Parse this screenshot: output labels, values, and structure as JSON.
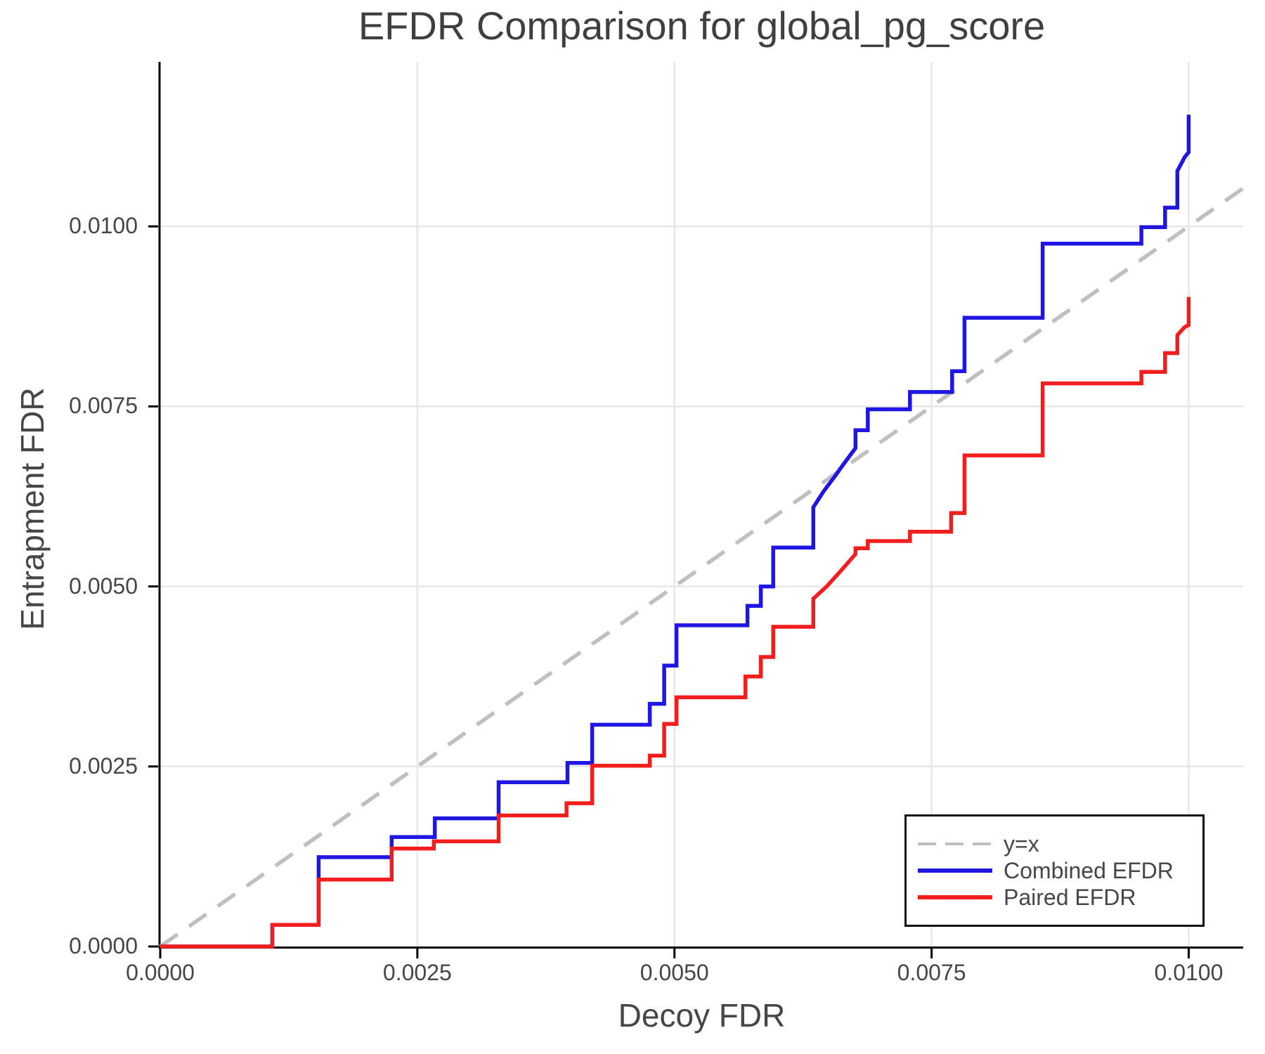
{
  "figure": {
    "title": "EFDR Comparison for global_pg_score",
    "xlabel": "Decoy FDR",
    "ylabel": "Entrapment FDR"
  },
  "colors": {
    "combined": "#2016e2",
    "paired": "#f21d1d",
    "identity": "#bfbfbf",
    "grid": "#e7e7e7",
    "axis": "#000000",
    "text": "#464646"
  },
  "legend": {
    "entries": [
      {
        "label": "y=x",
        "color": "#bfbfbf",
        "style": "dashed"
      },
      {
        "label": "Combined EFDR",
        "color": "#2016e2",
        "style": "solid"
      },
      {
        "label": "Paired EFDR",
        "color": "#f21d1d",
        "style": "solid"
      }
    ]
  },
  "chart_data": {
    "type": "line",
    "title": "EFDR Comparison for global_pg_score",
    "xlabel": "Decoy FDR",
    "ylabel": "Entrapment FDR",
    "xlim": [
      0,
      0.01053
    ],
    "ylim": [
      0,
      0.012285
    ],
    "grid": true,
    "legend_position": "bottom-right",
    "x_tick_labels": [
      "0.0000",
      "0.0025",
      "0.0050",
      "0.0075",
      "0.0100"
    ],
    "x_tick_values": [
      0,
      0.0025,
      0.005,
      0.0075,
      0.01
    ],
    "y_tick_labels": [
      "0.0000",
      "0.0025",
      "0.0050",
      "0.0075",
      "0.0100"
    ],
    "y_tick_values": [
      0,
      0.0025,
      0.005,
      0.0075,
      0.01
    ],
    "series": [
      {
        "name": "y=x",
        "color": "#bfbfbf",
        "dash": true,
        "width": 4,
        "points": [
          [
            0,
            0
          ],
          [
            0.01053,
            0.01053
          ]
        ]
      },
      {
        "name": "Combined EFDR",
        "color": "#2016e2",
        "dash": false,
        "width": 5.5,
        "points": [
          [
            0,
            0
          ],
          [
            0.00109,
            0
          ],
          [
            0.00109,
            0.0003
          ],
          [
            0.00154,
            0.0003
          ],
          [
            0.00154,
            0.00124
          ],
          [
            0.00225,
            0.00124
          ],
          [
            0.00225,
            0.00152
          ],
          [
            0.00267,
            0.00152
          ],
          [
            0.00267,
            0.00178
          ],
          [
            0.00329,
            0.00178
          ],
          [
            0.00329,
            0.00228
          ],
          [
            0.00396,
            0.00228
          ],
          [
            0.00396,
            0.00255
          ],
          [
            0.0042,
            0.00255
          ],
          [
            0.0042,
            0.00308
          ],
          [
            0.00476,
            0.00308
          ],
          [
            0.00476,
            0.00337
          ],
          [
            0.0049,
            0.00337
          ],
          [
            0.0049,
            0.0039
          ],
          [
            0.00502,
            0.0039
          ],
          [
            0.00502,
            0.00446
          ],
          [
            0.00571,
            0.00446
          ],
          [
            0.00571,
            0.00473
          ],
          [
            0.00584,
            0.00473
          ],
          [
            0.00584,
            0.005
          ],
          [
            0.00596,
            0.005
          ],
          [
            0.00596,
            0.00554
          ],
          [
            0.00635,
            0.00554
          ],
          [
            0.00635,
            0.0061
          ],
          [
            0.00645,
            0.00632
          ],
          [
            0.00656,
            0.00653
          ],
          [
            0.00665,
            0.00671
          ],
          [
            0.00676,
            0.00692
          ],
          [
            0.00676,
            0.00717
          ],
          [
            0.00688,
            0.00717
          ],
          [
            0.00688,
            0.00746
          ],
          [
            0.00729,
            0.00746
          ],
          [
            0.00729,
            0.0077
          ],
          [
            0.0077,
            0.0077
          ],
          [
            0.0077,
            0.00799
          ],
          [
            0.00782,
            0.00799
          ],
          [
            0.00782,
            0.00873
          ],
          [
            0.00858,
            0.00873
          ],
          [
            0.00858,
            0.00976
          ],
          [
            0.00954,
            0.00976
          ],
          [
            0.00954,
            0.00999
          ],
          [
            0.00977,
            0.00999
          ],
          [
            0.00977,
            0.01026
          ],
          [
            0.00989,
            0.01026
          ],
          [
            0.00989,
            0.01077
          ],
          [
            0.00996,
            0.01096
          ],
          [
            0.01,
            0.01103
          ],
          [
            0.01,
            0.01155
          ]
        ]
      },
      {
        "name": "Paired EFDR",
        "color": "#f21d1d",
        "dash": false,
        "width": 5.5,
        "points": [
          [
            0,
            0
          ],
          [
            0.00109,
            0
          ],
          [
            0.00109,
            0.0003
          ],
          [
            0.00154,
            0.0003
          ],
          [
            0.00154,
            0.00093
          ],
          [
            0.00225,
            0.00093
          ],
          [
            0.00225,
            0.00136
          ],
          [
            0.00266,
            0.00136
          ],
          [
            0.00266,
            0.00146
          ],
          [
            0.00329,
            0.00146
          ],
          [
            0.00329,
            0.00182
          ],
          [
            0.00395,
            0.00182
          ],
          [
            0.00395,
            0.00199
          ],
          [
            0.0042,
            0.00199
          ],
          [
            0.0042,
            0.00251
          ],
          [
            0.00476,
            0.00251
          ],
          [
            0.00476,
            0.00265
          ],
          [
            0.0049,
            0.00265
          ],
          [
            0.0049,
            0.00309
          ],
          [
            0.00502,
            0.00309
          ],
          [
            0.00502,
            0.00346
          ],
          [
            0.00569,
            0.00346
          ],
          [
            0.00569,
            0.00375
          ],
          [
            0.00584,
            0.00375
          ],
          [
            0.00584,
            0.00402
          ],
          [
            0.00596,
            0.00402
          ],
          [
            0.00596,
            0.00444
          ],
          [
            0.00635,
            0.00444
          ],
          [
            0.00635,
            0.00483
          ],
          [
            0.00648,
            0.005
          ],
          [
            0.00662,
            0.00522
          ],
          [
            0.00676,
            0.00545
          ],
          [
            0.00676,
            0.00553
          ],
          [
            0.00688,
            0.00553
          ],
          [
            0.00688,
            0.00563
          ],
          [
            0.00729,
            0.00563
          ],
          [
            0.00729,
            0.00576
          ],
          [
            0.00769,
            0.00576
          ],
          [
            0.00769,
            0.00602
          ],
          [
            0.00782,
            0.00602
          ],
          [
            0.00782,
            0.00682
          ],
          [
            0.00858,
            0.00682
          ],
          [
            0.00858,
            0.00782
          ],
          [
            0.00954,
            0.00782
          ],
          [
            0.00954,
            0.00798
          ],
          [
            0.00977,
            0.00798
          ],
          [
            0.00977,
            0.00824
          ],
          [
            0.00989,
            0.00824
          ],
          [
            0.00989,
            0.00849
          ],
          [
            0.00996,
            0.0086
          ],
          [
            0.01,
            0.00863
          ],
          [
            0.01,
            0.00902
          ]
        ]
      }
    ]
  }
}
